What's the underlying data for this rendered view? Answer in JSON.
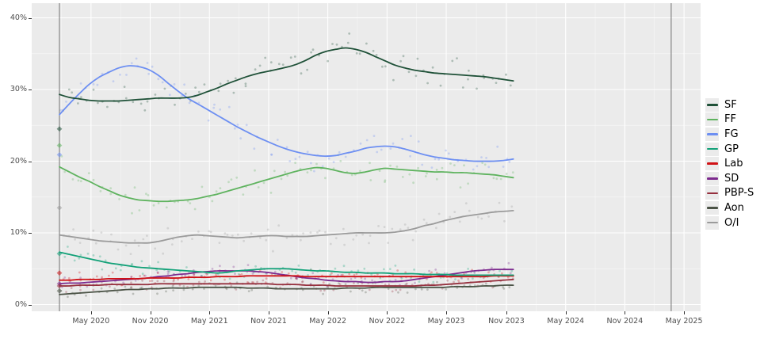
{
  "chart_data": {
    "type": "scatter+smoothed-line",
    "title": "",
    "description": "Opinion polling trend lines with individual poll scatter points",
    "x_axis": {
      "unit": "months since February 2020",
      "ticks": [
        {
          "label": "May 2020",
          "m": 3.2
        },
        {
          "label": "Nov 2020",
          "m": 9.2
        },
        {
          "label": "May 2021",
          "m": 15.2
        },
        {
          "label": "Nov 2021",
          "m": 21.2
        },
        {
          "label": "May 2022",
          "m": 27.2
        },
        {
          "label": "Nov 2022",
          "m": 33.2
        },
        {
          "label": "May 2023",
          "m": 39.2
        },
        {
          "label": "Nov 2023",
          "m": 45.3
        },
        {
          "label": "May 2024",
          "m": 51.3
        },
        {
          "label": "Nov 2024",
          "m": 57.3
        },
        {
          "label": "May 2025",
          "m": 63.3
        }
      ]
    },
    "y_axis": {
      "ticks": [
        {
          "label": "0%",
          "value": 0
        },
        {
          "label": "10%",
          "value": 10
        },
        {
          "label": "20%",
          "value": 20
        },
        {
          "label": "30%",
          "value": 30
        },
        {
          "label": "40%",
          "value": 40
        }
      ],
      "minor_values": [
        5,
        15,
        25,
        35
      ],
      "range": [
        -0.5,
        42
      ]
    },
    "grid": {
      "major_color": "#ffffff",
      "minor_on": true
    },
    "vlines_months": [
      0,
      62.0
    ],
    "vline_color": "#707070",
    "legend_position": "right",
    "month_range": [
      0,
      46
    ],
    "series": [
      {
        "name": "SF",
        "color": "#1f5138",
        "election_result": 24.5,
        "scatter_spread": 2.2,
        "values": [
          29.3,
          28.9,
          28.7,
          28.5,
          28.4,
          28.4,
          28.4,
          28.5,
          28.6,
          28.7,
          28.8,
          28.8,
          28.8,
          28.9,
          29.2,
          29.7,
          30.2,
          30.8,
          31.3,
          31.8,
          32.2,
          32.5,
          32.8,
          33.1,
          33.5,
          34.1,
          34.8,
          35.3,
          35.6,
          35.8,
          35.6,
          35.2,
          34.6,
          34.0,
          33.4,
          33.0,
          32.7,
          32.5,
          32.3,
          32.2,
          32.1,
          32.0,
          31.9,
          31.8,
          31.6,
          31.4,
          31.2
        ]
      },
      {
        "name": "FF",
        "color": "#5fb35f",
        "election_result": 22.2,
        "scatter_spread": 2.0,
        "values": [
          19.2,
          18.5,
          17.8,
          17.2,
          16.5,
          15.9,
          15.3,
          14.9,
          14.6,
          14.5,
          14.4,
          14.4,
          14.5,
          14.6,
          14.8,
          15.1,
          15.4,
          15.8,
          16.2,
          16.6,
          17.0,
          17.4,
          17.8,
          18.2,
          18.6,
          18.9,
          19.1,
          19.0,
          18.7,
          18.4,
          18.3,
          18.5,
          18.8,
          19.0,
          18.9,
          18.8,
          18.7,
          18.6,
          18.5,
          18.5,
          18.4,
          18.4,
          18.3,
          18.2,
          18.1,
          17.9,
          17.7
        ]
      },
      {
        "name": "FG",
        "color": "#6d8ff2",
        "election_result": 20.9,
        "scatter_spread": 2.0,
        "values": [
          26.5,
          28.0,
          29.4,
          30.7,
          31.7,
          32.4,
          33.0,
          33.3,
          33.2,
          32.8,
          32.0,
          30.9,
          29.8,
          28.8,
          28.0,
          27.2,
          26.4,
          25.6,
          24.8,
          24.1,
          23.4,
          22.8,
          22.2,
          21.7,
          21.3,
          21.0,
          20.8,
          20.7,
          20.8,
          21.1,
          21.4,
          21.8,
          22.0,
          22.1,
          22.0,
          21.7,
          21.3,
          20.9,
          20.6,
          20.4,
          20.2,
          20.1,
          20.0,
          20.0,
          20.0,
          20.1,
          20.3
        ]
      },
      {
        "name": "GP",
        "color": "#12a178",
        "election_result": 7.1,
        "scatter_spread": 1.1,
        "values": [
          7.3,
          7.0,
          6.7,
          6.4,
          6.1,
          5.8,
          5.6,
          5.4,
          5.2,
          5.1,
          5.0,
          4.9,
          4.8,
          4.7,
          4.6,
          4.5,
          4.4,
          4.5,
          4.7,
          4.8,
          4.9,
          5.0,
          5.0,
          5.0,
          4.9,
          4.8,
          4.7,
          4.7,
          4.6,
          4.5,
          4.5,
          4.4,
          4.4,
          4.4,
          4.3,
          4.3,
          4.3,
          4.2,
          4.2,
          4.2,
          4.1,
          4.1,
          4.1,
          4.1,
          4.1,
          4.1,
          4.1
        ]
      },
      {
        "name": "Lab",
        "color": "#d01216",
        "election_result": 4.4,
        "scatter_spread": 1.0,
        "values": [
          3.4,
          3.4,
          3.5,
          3.5,
          3.5,
          3.6,
          3.6,
          3.6,
          3.6,
          3.7,
          3.7,
          3.7,
          3.7,
          3.8,
          3.8,
          3.8,
          3.9,
          3.9,
          3.9,
          4.0,
          4.0,
          4.0,
          4.0,
          4.0,
          4.0,
          3.9,
          3.9,
          3.9,
          3.9,
          3.9,
          3.9,
          3.9,
          3.9,
          3.9,
          3.9,
          3.9,
          3.9,
          3.9,
          3.9,
          3.9,
          3.9,
          3.9,
          3.9,
          3.9,
          4.0,
          4.0,
          4.0
        ]
      },
      {
        "name": "SD",
        "color": "#7d2b8e",
        "election_result": 2.9,
        "scatter_spread": 1.0,
        "values": [
          2.9,
          3.0,
          3.0,
          3.1,
          3.2,
          3.3,
          3.4,
          3.5,
          3.6,
          3.7,
          3.9,
          4.0,
          4.2,
          4.3,
          4.5,
          4.6,
          4.7,
          4.7,
          4.7,
          4.7,
          4.6,
          4.5,
          4.3,
          4.1,
          3.9,
          3.7,
          3.6,
          3.4,
          3.3,
          3.2,
          3.2,
          3.1,
          3.1,
          3.2,
          3.2,
          3.3,
          3.5,
          3.7,
          3.9,
          4.1,
          4.3,
          4.5,
          4.7,
          4.8,
          4.9,
          4.9,
          4.9
        ]
      },
      {
        "name": "PBP-S",
        "color": "#96303e",
        "election_result": 2.6,
        "scatter_spread": 0.8,
        "values": [
          2.6,
          2.6,
          2.7,
          2.7,
          2.7,
          2.8,
          2.8,
          2.8,
          2.8,
          2.8,
          2.9,
          2.9,
          2.9,
          2.9,
          2.9,
          2.9,
          2.9,
          2.9,
          2.9,
          2.9,
          2.9,
          2.9,
          2.8,
          2.8,
          2.8,
          2.7,
          2.7,
          2.7,
          2.6,
          2.6,
          2.6,
          2.6,
          2.6,
          2.6,
          2.6,
          2.6,
          2.6,
          2.7,
          2.7,
          2.8,
          2.9,
          3.0,
          3.1,
          3.2,
          3.3,
          3.4,
          3.5
        ]
      },
      {
        "name": "Aon",
        "color": "#4b5346",
        "election_result": 1.9,
        "scatter_spread": 0.8,
        "values": [
          1.4,
          1.5,
          1.6,
          1.7,
          1.8,
          1.9,
          2.0,
          2.1,
          2.1,
          2.2,
          2.2,
          2.3,
          2.3,
          2.3,
          2.4,
          2.4,
          2.4,
          2.4,
          2.4,
          2.3,
          2.3,
          2.3,
          2.2,
          2.2,
          2.2,
          2.2,
          2.2,
          2.2,
          2.2,
          2.3,
          2.3,
          2.3,
          2.4,
          2.4,
          2.4,
          2.4,
          2.4,
          2.4,
          2.4,
          2.4,
          2.5,
          2.5,
          2.5,
          2.6,
          2.6,
          2.7,
          2.7
        ]
      },
      {
        "name": "O/I",
        "color": "#9b9b9b",
        "election_result": 13.5,
        "scatter_spread": 1.9,
        "values": [
          9.7,
          9.5,
          9.3,
          9.1,
          8.9,
          8.8,
          8.7,
          8.6,
          8.6,
          8.6,
          8.8,
          9.1,
          9.4,
          9.6,
          9.7,
          9.6,
          9.5,
          9.4,
          9.3,
          9.4,
          9.5,
          9.6,
          9.6,
          9.5,
          9.5,
          9.5,
          9.6,
          9.7,
          9.8,
          9.9,
          10.0,
          10.0,
          10.0,
          10.0,
          10.1,
          10.3,
          10.6,
          11.0,
          11.3,
          11.7,
          12.0,
          12.3,
          12.5,
          12.7,
          12.9,
          13.0,
          13.1
        ]
      }
    ]
  }
}
